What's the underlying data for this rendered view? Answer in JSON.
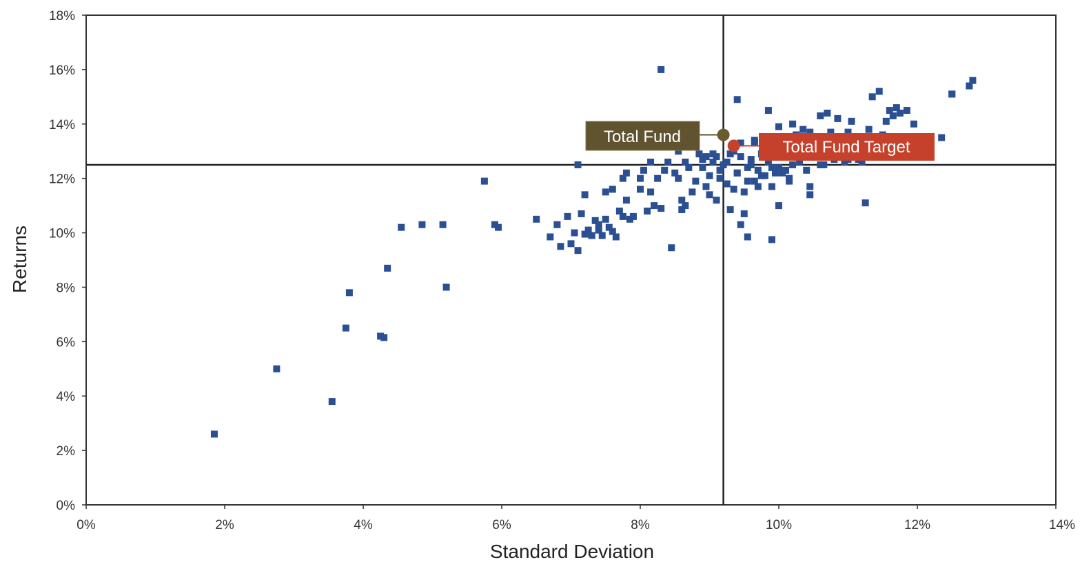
{
  "chart_data": {
    "type": "scatter",
    "title": "",
    "xlabel": "Standard Deviation",
    "ylabel": "Returns",
    "xlim": [
      0,
      14
    ],
    "ylim": [
      0,
      18
    ],
    "x_ticks": [
      {
        "value": 0,
        "label": "0%"
      },
      {
        "value": 2,
        "label": "2%"
      },
      {
        "value": 4,
        "label": "4%"
      },
      {
        "value": 6,
        "label": "6%"
      },
      {
        "value": 8,
        "label": "8%"
      },
      {
        "value": 10,
        "label": "10%"
      },
      {
        "value": 12,
        "label": "12%"
      },
      {
        "value": 14,
        "label": "14%"
      }
    ],
    "y_ticks": [
      {
        "value": 0,
        "label": "0%"
      },
      {
        "value": 2,
        "label": "2%"
      },
      {
        "value": 4,
        "label": "4%"
      },
      {
        "value": 6,
        "label": "6%"
      },
      {
        "value": 8,
        "label": "8%"
      },
      {
        "value": 10,
        "label": "10%"
      },
      {
        "value": 12,
        "label": "12%"
      },
      {
        "value": 14,
        "label": "14%"
      },
      {
        "value": 16,
        "label": "16%"
      },
      {
        "value": 18,
        "label": "18%"
      }
    ],
    "grid": false,
    "reference_lines": {
      "x": 9.2,
      "y": 12.5
    },
    "peer_color": "#2b4f93",
    "series": [
      {
        "points": [
          [
            1.85,
            2.6
          ],
          [
            2.75,
            5.0
          ],
          [
            3.55,
            3.8
          ],
          [
            3.75,
            6.5
          ],
          [
            3.8,
            7.8
          ],
          [
            4.25,
            6.2
          ],
          [
            4.3,
            6.15
          ],
          [
            4.35,
            8.7
          ],
          [
            4.55,
            10.2
          ],
          [
            4.85,
            10.3
          ],
          [
            5.15,
            10.3
          ],
          [
            5.2,
            8.0
          ],
          [
            5.75,
            11.9
          ],
          [
            5.9,
            10.3
          ],
          [
            5.95,
            10.2
          ],
          [
            6.5,
            10.5
          ],
          [
            6.7,
            9.85
          ],
          [
            6.8,
            10.3
          ],
          [
            6.85,
            9.5
          ],
          [
            6.95,
            10.6
          ],
          [
            7.0,
            9.6
          ],
          [
            7.05,
            10.0
          ],
          [
            7.1,
            12.5
          ],
          [
            7.1,
            9.35
          ],
          [
            7.15,
            10.7
          ],
          [
            7.2,
            11.4
          ],
          [
            7.25,
            10.1
          ],
          [
            7.3,
            9.9
          ],
          [
            7.35,
            10.45
          ],
          [
            7.4,
            10.3
          ],
          [
            7.45,
            9.9
          ],
          [
            7.5,
            11.5
          ],
          [
            7.55,
            10.2
          ],
          [
            7.6,
            10.05
          ],
          [
            7.6,
            11.6
          ],
          [
            7.65,
            9.85
          ],
          [
            7.7,
            10.8
          ],
          [
            7.75,
            10.6
          ],
          [
            7.75,
            12.0
          ],
          [
            7.8,
            11.2
          ],
          [
            7.8,
            12.2
          ],
          [
            7.85,
            10.5
          ],
          [
            7.9,
            10.6
          ],
          [
            8.0,
            11.6
          ],
          [
            8.05,
            12.3
          ],
          [
            8.1,
            10.8
          ],
          [
            8.15,
            11.5
          ],
          [
            8.2,
            11.0
          ],
          [
            8.25,
            12.0
          ],
          [
            8.3,
            10.9
          ],
          [
            8.35,
            12.3
          ],
          [
            8.4,
            12.6
          ],
          [
            8.45,
            9.45
          ],
          [
            8.5,
            12.2
          ],
          [
            8.55,
            13.0
          ],
          [
            8.6,
            10.85
          ],
          [
            8.65,
            12.6
          ],
          [
            8.7,
            12.4
          ],
          [
            8.3,
            16.0
          ],
          [
            8.9,
            12.7
          ],
          [
            8.95,
            11.7
          ],
          [
            9.0,
            11.4
          ],
          [
            9.05,
            12.6
          ],
          [
            9.1,
            11.2
          ],
          [
            9.15,
            12.0
          ],
          [
            9.2,
            12.5
          ],
          [
            9.25,
            11.8
          ],
          [
            9.3,
            12.9
          ],
          [
            9.35,
            11.6
          ],
          [
            9.4,
            12.2
          ],
          [
            9.45,
            12.8
          ],
          [
            9.5,
            11.5
          ],
          [
            9.55,
            12.4
          ],
          [
            9.6,
            12.7
          ],
          [
            9.65,
            11.9
          ],
          [
            9.7,
            12.3
          ],
          [
            9.75,
            12.9
          ],
          [
            9.8,
            12.1
          ],
          [
            9.85,
            12.6
          ],
          [
            9.9,
            11.7
          ],
          [
            9.95,
            12.8
          ],
          [
            10.0,
            12.4
          ],
          [
            10.05,
            12.2
          ],
          [
            10.1,
            12.9
          ],
          [
            10.15,
            11.9
          ],
          [
            10.2,
            12.5
          ],
          [
            9.3,
            10.85
          ],
          [
            9.35,
            13.0
          ],
          [
            9.4,
            12.2
          ],
          [
            9.45,
            10.3
          ],
          [
            9.5,
            10.7
          ],
          [
            9.55,
            9.85
          ],
          [
            9.6,
            12.5
          ],
          [
            9.65,
            13.4
          ],
          [
            9.7,
            11.7
          ],
          [
            9.75,
            12.1
          ],
          [
            9.8,
            13.0
          ],
          [
            9.85,
            14.5
          ],
          [
            9.9,
            9.75
          ],
          [
            9.95,
            12.2
          ],
          [
            10.0,
            13.9
          ],
          [
            10.0,
            11.0
          ],
          [
            10.05,
            12.8
          ],
          [
            10.1,
            13.2
          ],
          [
            10.15,
            12.0
          ],
          [
            10.2,
            14.0
          ],
          [
            10.25,
            13.6
          ],
          [
            10.3,
            12.6
          ],
          [
            10.35,
            13.8
          ],
          [
            10.4,
            12.3
          ],
          [
            10.45,
            11.7
          ],
          [
            10.45,
            11.4
          ],
          [
            10.5,
            13.1
          ],
          [
            10.55,
            12.9
          ],
          [
            10.6,
            14.3
          ],
          [
            10.65,
            12.5
          ],
          [
            10.7,
            14.4
          ],
          [
            10.75,
            13.7
          ],
          [
            10.8,
            12.7
          ],
          [
            10.85,
            14.2
          ],
          [
            10.9,
            13.3
          ],
          [
            10.95,
            12.6
          ],
          [
            11.0,
            13.7
          ],
          [
            11.05,
            14.1
          ],
          [
            11.1,
            13.2
          ],
          [
            11.15,
            12.7
          ],
          [
            11.2,
            13.0
          ],
          [
            11.25,
            11.1
          ],
          [
            11.3,
            13.8
          ],
          [
            11.35,
            15.0
          ],
          [
            11.4,
            13.3
          ],
          [
            11.45,
            15.2
          ],
          [
            11.5,
            13.6
          ],
          [
            11.55,
            14.1
          ],
          [
            11.6,
            14.5
          ],
          [
            11.65,
            14.3
          ],
          [
            11.7,
            14.6
          ],
          [
            11.75,
            14.4
          ],
          [
            11.85,
            14.5
          ],
          [
            11.95,
            14.0
          ],
          [
            12.35,
            13.5
          ],
          [
            12.5,
            15.1
          ],
          [
            12.75,
            15.4
          ],
          [
            12.8,
            15.6
          ],
          [
            9.0,
            12.1
          ],
          [
            9.1,
            12.8
          ],
          [
            8.8,
            11.9
          ],
          [
            8.75,
            11.5
          ],
          [
            8.65,
            11.0
          ],
          [
            8.6,
            11.2
          ],
          [
            8.55,
            12.0
          ],
          [
            9.25,
            12.6
          ],
          [
            9.15,
            12.3
          ],
          [
            9.55,
            11.9
          ],
          [
            10.3,
            12.8
          ],
          [
            10.6,
            12.5
          ],
          [
            10.9,
            12.9
          ],
          [
            11.2,
            12.6
          ],
          [
            10.1,
            12.3
          ],
          [
            9.9,
            12.4
          ],
          [
            8.9,
            12.4
          ],
          [
            8.85,
            12.9
          ],
          [
            8.95,
            12.8
          ],
          [
            9.05,
            12.9
          ],
          [
            9.45,
            13.3
          ],
          [
            9.65,
            13.3
          ],
          [
            9.85,
            13.2
          ],
          [
            10.05,
            13.5
          ],
          [
            10.45,
            13.7
          ],
          [
            10.8,
            13.4
          ],
          [
            11.0,
            12.7
          ],
          [
            7.3,
            9.9
          ],
          [
            7.5,
            10.5
          ],
          [
            8.15,
            12.6
          ],
          [
            8.0,
            12.0
          ],
          [
            7.2,
            9.95
          ],
          [
            7.4,
            10.1
          ],
          [
            9.4,
            14.9
          ],
          [
            12.5,
            15.1
          ]
        ]
      }
    ],
    "highlights": [
      {
        "name": "Total Fund",
        "x": 9.2,
        "y": 13.6,
        "color": "#6b5a2e",
        "label_color": "#5f5330"
      },
      {
        "name": "Total Fund Target",
        "x": 9.35,
        "y": 13.2,
        "color": "#c5412b",
        "label_color": "#c5412b"
      }
    ]
  }
}
